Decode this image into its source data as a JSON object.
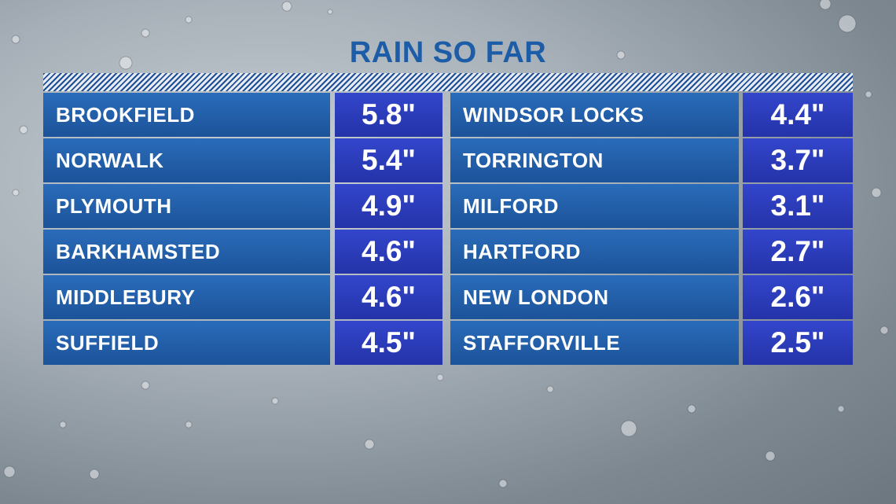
{
  "title": "RAIN SO FAR",
  "table": {
    "left": [
      [
        "BROOKFIELD",
        "5.8\""
      ],
      [
        "NORWALK",
        "5.4\""
      ],
      [
        "PLYMOUTH",
        "4.9\""
      ],
      [
        "BARKHAMSTED",
        "4.6\""
      ],
      [
        "MIDDLEBURY",
        "4.6\""
      ],
      [
        "SUFFIELD",
        "4.5\""
      ]
    ],
    "right": [
      [
        "WINDSOR LOCKS",
        "4.4\""
      ],
      [
        "TORRINGTON",
        "3.7\""
      ],
      [
        "MILFORD",
        "3.1\""
      ],
      [
        "HARTFORD",
        "2.7\""
      ],
      [
        "NEW LONDON",
        "2.6\""
      ],
      [
        "STAFFORVILLE",
        "2.5\""
      ]
    ]
  }
}
